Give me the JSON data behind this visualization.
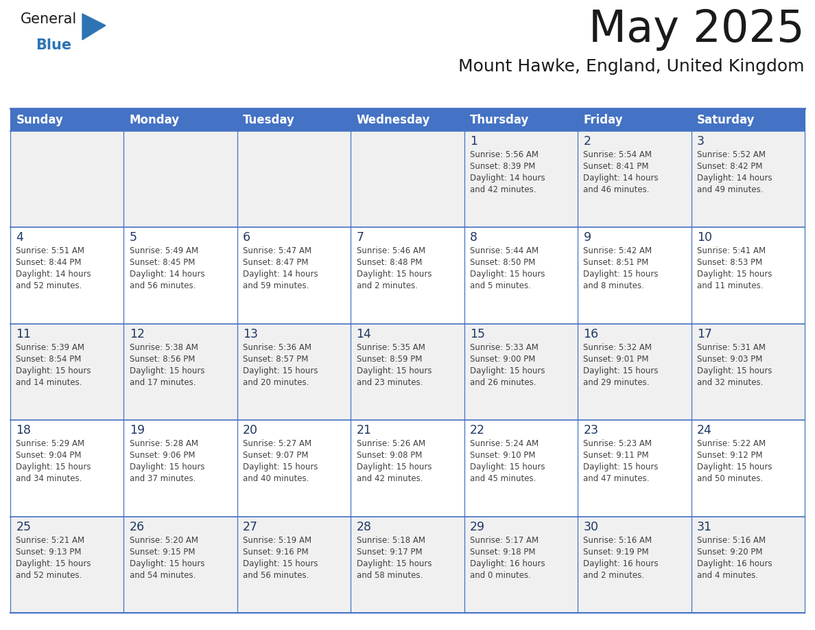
{
  "title": "May 2025",
  "subtitle": "Mount Hawke, England, United Kingdom",
  "days_of_week": [
    "Sunday",
    "Monday",
    "Tuesday",
    "Wednesday",
    "Thursday",
    "Friday",
    "Saturday"
  ],
  "header_bg": "#4472C4",
  "header_text_color": "#FFFFFF",
  "cell_bg_white": "#FFFFFF",
  "cell_bg_gray": "#F0F0F0",
  "day_number_color": "#1F3864",
  "info_text_color": "#404040",
  "border_color": "#4472C4",
  "row_border_color": "#4472C4",
  "title_color": "#1a1a1a",
  "subtitle_color": "#1a1a1a",
  "logo_general_color": "#1a1a1a",
  "logo_blue_color": "#2E74B5",
  "weeks": [
    {
      "days": [
        {
          "date": "",
          "info": ""
        },
        {
          "date": "",
          "info": ""
        },
        {
          "date": "",
          "info": ""
        },
        {
          "date": "",
          "info": ""
        },
        {
          "date": "1",
          "info": "Sunrise: 5:56 AM\nSunset: 8:39 PM\nDaylight: 14 hours\nand 42 minutes."
        },
        {
          "date": "2",
          "info": "Sunrise: 5:54 AM\nSunset: 8:41 PM\nDaylight: 14 hours\nand 46 minutes."
        },
        {
          "date": "3",
          "info": "Sunrise: 5:52 AM\nSunset: 8:42 PM\nDaylight: 14 hours\nand 49 minutes."
        }
      ]
    },
    {
      "days": [
        {
          "date": "4",
          "info": "Sunrise: 5:51 AM\nSunset: 8:44 PM\nDaylight: 14 hours\nand 52 minutes."
        },
        {
          "date": "5",
          "info": "Sunrise: 5:49 AM\nSunset: 8:45 PM\nDaylight: 14 hours\nand 56 minutes."
        },
        {
          "date": "6",
          "info": "Sunrise: 5:47 AM\nSunset: 8:47 PM\nDaylight: 14 hours\nand 59 minutes."
        },
        {
          "date": "7",
          "info": "Sunrise: 5:46 AM\nSunset: 8:48 PM\nDaylight: 15 hours\nand 2 minutes."
        },
        {
          "date": "8",
          "info": "Sunrise: 5:44 AM\nSunset: 8:50 PM\nDaylight: 15 hours\nand 5 minutes."
        },
        {
          "date": "9",
          "info": "Sunrise: 5:42 AM\nSunset: 8:51 PM\nDaylight: 15 hours\nand 8 minutes."
        },
        {
          "date": "10",
          "info": "Sunrise: 5:41 AM\nSunset: 8:53 PM\nDaylight: 15 hours\nand 11 minutes."
        }
      ]
    },
    {
      "days": [
        {
          "date": "11",
          "info": "Sunrise: 5:39 AM\nSunset: 8:54 PM\nDaylight: 15 hours\nand 14 minutes."
        },
        {
          "date": "12",
          "info": "Sunrise: 5:38 AM\nSunset: 8:56 PM\nDaylight: 15 hours\nand 17 minutes."
        },
        {
          "date": "13",
          "info": "Sunrise: 5:36 AM\nSunset: 8:57 PM\nDaylight: 15 hours\nand 20 minutes."
        },
        {
          "date": "14",
          "info": "Sunrise: 5:35 AM\nSunset: 8:59 PM\nDaylight: 15 hours\nand 23 minutes."
        },
        {
          "date": "15",
          "info": "Sunrise: 5:33 AM\nSunset: 9:00 PM\nDaylight: 15 hours\nand 26 minutes."
        },
        {
          "date": "16",
          "info": "Sunrise: 5:32 AM\nSunset: 9:01 PM\nDaylight: 15 hours\nand 29 minutes."
        },
        {
          "date": "17",
          "info": "Sunrise: 5:31 AM\nSunset: 9:03 PM\nDaylight: 15 hours\nand 32 minutes."
        }
      ]
    },
    {
      "days": [
        {
          "date": "18",
          "info": "Sunrise: 5:29 AM\nSunset: 9:04 PM\nDaylight: 15 hours\nand 34 minutes."
        },
        {
          "date": "19",
          "info": "Sunrise: 5:28 AM\nSunset: 9:06 PM\nDaylight: 15 hours\nand 37 minutes."
        },
        {
          "date": "20",
          "info": "Sunrise: 5:27 AM\nSunset: 9:07 PM\nDaylight: 15 hours\nand 40 minutes."
        },
        {
          "date": "21",
          "info": "Sunrise: 5:26 AM\nSunset: 9:08 PM\nDaylight: 15 hours\nand 42 minutes."
        },
        {
          "date": "22",
          "info": "Sunrise: 5:24 AM\nSunset: 9:10 PM\nDaylight: 15 hours\nand 45 minutes."
        },
        {
          "date": "23",
          "info": "Sunrise: 5:23 AM\nSunset: 9:11 PM\nDaylight: 15 hours\nand 47 minutes."
        },
        {
          "date": "24",
          "info": "Sunrise: 5:22 AM\nSunset: 9:12 PM\nDaylight: 15 hours\nand 50 minutes."
        }
      ]
    },
    {
      "days": [
        {
          "date": "25",
          "info": "Sunrise: 5:21 AM\nSunset: 9:13 PM\nDaylight: 15 hours\nand 52 minutes."
        },
        {
          "date": "26",
          "info": "Sunrise: 5:20 AM\nSunset: 9:15 PM\nDaylight: 15 hours\nand 54 minutes."
        },
        {
          "date": "27",
          "info": "Sunrise: 5:19 AM\nSunset: 9:16 PM\nDaylight: 15 hours\nand 56 minutes."
        },
        {
          "date": "28",
          "info": "Sunrise: 5:18 AM\nSunset: 9:17 PM\nDaylight: 15 hours\nand 58 minutes."
        },
        {
          "date": "29",
          "info": "Sunrise: 5:17 AM\nSunset: 9:18 PM\nDaylight: 16 hours\nand 0 minutes."
        },
        {
          "date": "30",
          "info": "Sunrise: 5:16 AM\nSunset: 9:19 PM\nDaylight: 16 hours\nand 2 minutes."
        },
        {
          "date": "31",
          "info": "Sunrise: 5:16 AM\nSunset: 9:20 PM\nDaylight: 16 hours\nand 4 minutes."
        }
      ]
    }
  ]
}
